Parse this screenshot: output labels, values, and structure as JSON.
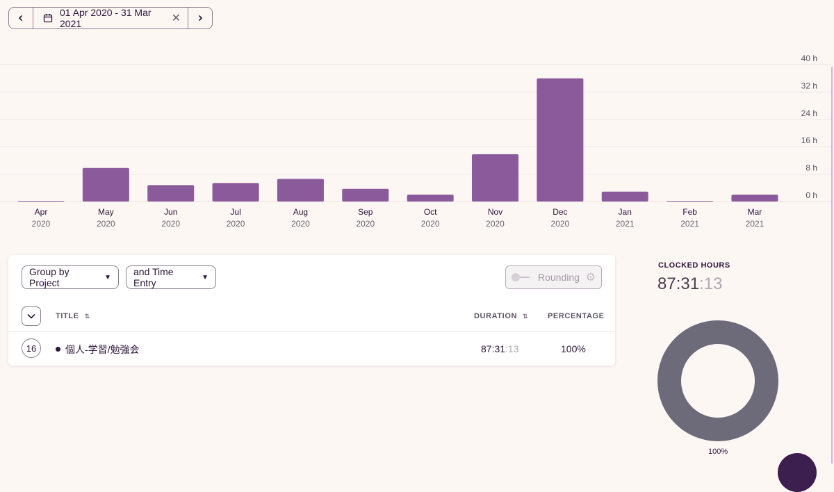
{
  "date_range": {
    "label": "01 Apr 2020 - 31 Mar 2021",
    "prev_icon": "chevron-left-icon",
    "next_icon": "chevron-right-icon",
    "calendar_icon": "calendar-icon",
    "clear_icon": "close-icon",
    "clear_glyph": "✕"
  },
  "chart_data": {
    "type": "bar",
    "categories": [
      "Apr",
      "May",
      "Jun",
      "Jul",
      "Aug",
      "Sep",
      "Oct",
      "Nov",
      "Dec",
      "Jan",
      "Feb",
      "Mar"
    ],
    "years": [
      "2020",
      "2020",
      "2020",
      "2020",
      "2020",
      "2020",
      "2020",
      "2020",
      "2020",
      "2021",
      "2021",
      "2021"
    ],
    "values": [
      0.2,
      9.8,
      4.8,
      5.4,
      6.6,
      3.7,
      2.0,
      13.8,
      36.0,
      2.9,
      0.2,
      2.0
    ],
    "unit": "h",
    "ylim": [
      0,
      40
    ],
    "yticks": [
      0,
      8,
      16,
      24,
      32,
      40
    ],
    "ytick_labels": [
      "0 h",
      "8 h",
      "16 h",
      "24 h",
      "32 h",
      "40 h"
    ],
    "grid": true,
    "color": "#8a5a9a"
  },
  "controls": {
    "group_by": "Group by Project",
    "then_by": "and Time Entry",
    "rounding": "Rounding",
    "rounding_enabled": false
  },
  "table": {
    "headers": {
      "title": "TITLE",
      "duration": "DURATION",
      "percentage": "PERCENTAGE"
    },
    "rows": [
      {
        "count": "16",
        "project": "個人-学習/勉強会",
        "duration_main": "87:31",
        "duration_sec": ":13",
        "percentage": "100%"
      }
    ]
  },
  "summary": {
    "clocked_label": "CLOCKED HOURS",
    "duration_main": "87:31",
    "duration_sec": ":13",
    "donut_percentage": "100%",
    "donut_color": "#6d6a79"
  }
}
